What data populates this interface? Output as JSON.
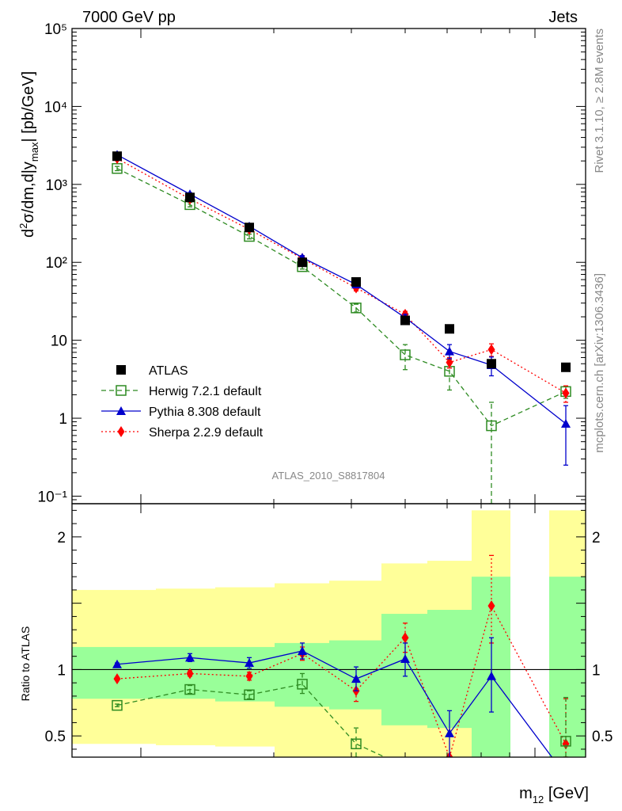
{
  "header": {
    "left": "7000 GeV pp",
    "right": "Jets",
    "side_top": "Rivet 3.1.10, ≥ 2.8M events",
    "side_bottom": "mcplots.cern.ch [arXiv:1306.3436]",
    "analysis_id": "ATLAS_2010_S8817804"
  },
  "colors": {
    "atlas": "#000000",
    "herwig": "#2e8b22",
    "pythia": "#0000cc",
    "sherpa": "#ff0000",
    "band_inner": "#99ff99",
    "band_outer": "#ffff99"
  },
  "chart_data": {
    "type": "scatter",
    "xlabel": "m12 [GeV]",
    "main": {
      "ylabel": "d²σ/dm,d|ymax| [pb/GeV]",
      "yscale": "log",
      "ylim": [
        0.08,
        100000
      ],
      "yticks": [
        "10⁻¹",
        "1",
        "10",
        "10²",
        "10³",
        "10⁴",
        "10⁵"
      ],
      "legend_position": "lower-left",
      "series": [
        {
          "name": "ATLAS",
          "values": [
            2300,
            680,
            280,
            100,
            56,
            18,
            14,
            5,
            4.5
          ]
        },
        {
          "name": "Herwig 7.2.1 default",
          "values": [
            1600,
            550,
            215,
            88,
            26,
            6.5,
            4,
            0.8,
            2.2
          ],
          "err_lo": [
            1500,
            515,
            200,
            82,
            23,
            4.2,
            2.3,
            0.05,
            1.8
          ],
          "err_hi": [
            1700,
            590,
            230,
            94,
            29,
            8.8,
            5.7,
            1.6,
            2.6
          ]
        },
        {
          "name": "Pythia 8.308 default",
          "values": [
            2400,
            750,
            290,
            115,
            52,
            19.5,
            7.2,
            4.8,
            0.85
          ],
          "err_lo": [
            2300,
            720,
            275,
            108,
            48,
            17.5,
            5.8,
            3.5,
            0.25
          ],
          "err_hi": [
            2500,
            780,
            305,
            122,
            56,
            21.5,
            8.8,
            6.1,
            1.45
          ]
        },
        {
          "name": "Sherpa 2.2.9 default",
          "values": [
            2150,
            650,
            265,
            112,
            47,
            21.5,
            5.2,
            7.6,
            2.1
          ],
          "err_lo": [
            2050,
            620,
            250,
            105,
            43,
            19.5,
            4.4,
            6.2,
            1.6
          ],
          "err_hi": [
            2250,
            680,
            280,
            119,
            51,
            23.5,
            6.0,
            9.0,
            2.6
          ]
        }
      ]
    },
    "ratio": {
      "ylabel": "Ratio to ATLAS",
      "ylim": [
        0.34,
        2.25
      ],
      "yticks": [
        "0.5",
        "1",
        "2"
      ],
      "bands": [
        {
          "inner": [
            0.78,
            1.17
          ],
          "outer": [
            0.44,
            1.6
          ]
        },
        {
          "inner": [
            0.78,
            1.17
          ],
          "outer": [
            0.43,
            1.61
          ]
        },
        {
          "inner": [
            0.76,
            1.17
          ],
          "outer": [
            0.42,
            1.62
          ]
        },
        {
          "inner": [
            0.72,
            1.2
          ],
          "outer": [
            0.34,
            1.65
          ]
        },
        {
          "inner": [
            0.7,
            1.22
          ],
          "outer": [
            0.34,
            1.67
          ]
        },
        {
          "inner": [
            0.58,
            1.42
          ],
          "outer": [
            0.34,
            1.8
          ]
        },
        {
          "inner": [
            0.56,
            1.45
          ],
          "outer": [
            0.34,
            1.82
          ]
        },
        {
          "inner": [
            0.34,
            1.7
          ],
          "outer": [
            0.34,
            2.2
          ]
        },
        {
          "inner": [
            0.34,
            1.7
          ],
          "outer": [
            0.34,
            2.2
          ]
        }
      ],
      "series": [
        {
          "name": "Herwig 7.2.1 default",
          "values": [
            0.73,
            0.85,
            0.81,
            0.89,
            0.44,
            0.27,
            null,
            null,
            0.46
          ],
          "err_lo": [
            0.72,
            0.82,
            0.78,
            0.82,
            0.34,
            0.27,
            null,
            null,
            0.34
          ],
          "err_hi": [
            0.74,
            0.88,
            0.84,
            0.97,
            0.56,
            0.27,
            null,
            null,
            0.79
          ]
        },
        {
          "name": "Pythia 8.308 default",
          "values": [
            1.04,
            1.09,
            1.05,
            1.14,
            0.93,
            1.08,
            0.52,
            0.95,
            0.2
          ],
          "err_lo": [
            1.03,
            1.06,
            1.01,
            1.08,
            0.84,
            0.95,
            0.34,
            0.68,
            0.2
          ],
          "err_hi": [
            1.05,
            1.12,
            1.09,
            1.2,
            1.02,
            1.2,
            0.69,
            1.24,
            0.2
          ]
        },
        {
          "name": "Sherpa 2.2.9 default",
          "values": [
            0.93,
            0.97,
            0.95,
            1.12,
            0.84,
            1.24,
            0.34,
            1.48,
            0.44
          ],
          "err_lo": [
            0.92,
            0.95,
            0.92,
            1.07,
            0.76,
            1.13,
            0.34,
            1.2,
            0.34
          ],
          "err_hi": [
            0.94,
            0.99,
            0.98,
            1.17,
            0.93,
            1.35,
            0.34,
            1.86,
            0.78
          ]
        }
      ]
    }
  }
}
